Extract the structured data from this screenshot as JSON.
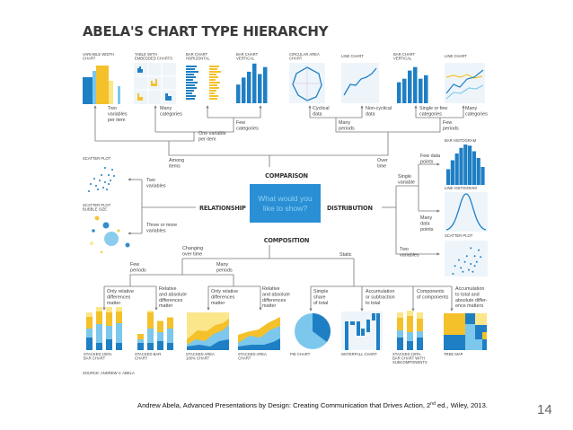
{
  "title": "ABELA'S CHART TYPE HIERARCHY",
  "center_question": [
    "What would you",
    "like to show?"
  ],
  "categories": {
    "comparison": "COMPARISON",
    "relationship": "RELATIONSHIP",
    "distribution": "DISTRIBUTION",
    "composition": "COMPOSITION"
  },
  "chart_labels": [
    [
      "VARIABLE WIDTH",
      "CHART"
    ],
    [
      "TABLE WITH",
      "EMBEDDED CHARTS"
    ],
    [
      "BAR CHART",
      "HORIZONTAL"
    ],
    [
      "BAR CHART",
      "VERTICAL"
    ],
    [
      "CIRCULAR AREA",
      "CHART"
    ],
    [
      "LINE CHART"
    ],
    [
      "BAR CHART",
      "VERTICAL"
    ],
    [
      "LINE CHART"
    ],
    [
      "SCATTER PLOT"
    ],
    [
      "SCATTER PLOT",
      "BUBBLE SIZE"
    ],
    [
      "BAR HISTOGRAM"
    ],
    [
      "LINE HISTOGRAM"
    ],
    [
      "SCATTER PLOT"
    ],
    [
      "STACKED 100%",
      "BAR CHART"
    ],
    [
      "STACKED BAR",
      "CHART"
    ],
    [
      "STACKED AREA",
      "100% CHART"
    ],
    [
      "STACKED AREA",
      "CHART"
    ],
    [
      "PIE CHART"
    ],
    [
      "WATERFALL CHART"
    ],
    [
      "STACKED 100%",
      "BAR CHART WITH",
      "SUBCOMPONENTS"
    ],
    [
      "TREE MAP"
    ]
  ],
  "annotations": [
    [
      "Two",
      "variables",
      "per item"
    ],
    [
      "Many",
      "categories"
    ],
    [
      "Few",
      "categories"
    ],
    [
      "One variable",
      "per item"
    ],
    [
      "Among",
      "items"
    ],
    [
      "Cyclical",
      "data"
    ],
    [
      "Non-cyclical",
      "data"
    ],
    [
      "Single or few",
      "categories"
    ],
    [
      "Many",
      "categories"
    ],
    [
      "Many",
      "periods"
    ],
    [
      "Few",
      "periods"
    ],
    [
      "Over",
      "time"
    ],
    [
      "Two",
      "variables"
    ],
    [
      "Three or more",
      "variables"
    ],
    [
      "Few data",
      "points"
    ],
    [
      "Single",
      "variable"
    ],
    [
      "Many",
      "data",
      "points"
    ],
    [
      "Two",
      "variables"
    ],
    [
      "Changing",
      "over time"
    ],
    [
      "Static"
    ],
    [
      "Few",
      "periods"
    ],
    [
      "Many",
      "periods"
    ],
    [
      "Only relative",
      "differences",
      "matter"
    ],
    [
      "Relative",
      "and absolute",
      "differences",
      "matter"
    ],
    [
      "Only relative",
      "differences",
      "matter"
    ],
    [
      "Relative",
      "and absolute",
      "differences",
      "matter"
    ],
    [
      "Simple",
      "share",
      "of total"
    ],
    [
      "Accumulation",
      "or subtraction",
      "to total"
    ],
    [
      "Components",
      "of components"
    ],
    [
      "Accumulation",
      "to total and",
      "absolute differ-",
      "ence matters"
    ]
  ],
  "source": "SOURCE: ANDREW V. ABELA",
  "footer": {
    "citation_main": "Andrew Abela, Advanced Presentations by Design: Creating Communication that Drives Action, 2",
    "citation_sup": "nd",
    "citation_end": " ed., Wiley, 2013."
  },
  "page_number": "14",
  "colors": {
    "blue": "#1f7fc4",
    "light_blue": "#7cc7ec",
    "yellow": "#f4c12b",
    "pale_yellow": "#fbe68a",
    "box": "#2a8fd4"
  }
}
